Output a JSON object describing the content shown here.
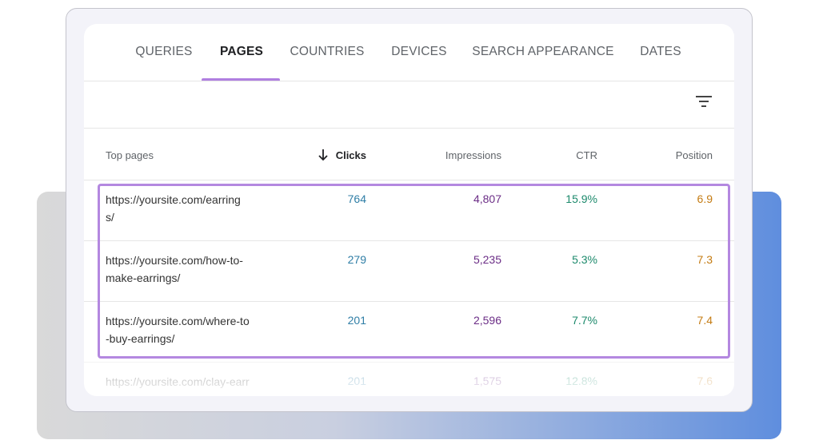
{
  "tabs": [
    "QUERIES",
    "PAGES",
    "COUNTRIES",
    "DEVICES",
    "SEARCH APPEARANCE",
    "DATES"
  ],
  "active_tab": 1,
  "table": {
    "headers": [
      "Top pages",
      "Clicks",
      "Impressions",
      "CTR",
      "Position"
    ],
    "rows": [
      {
        "url_lines": [
          "https://yoursite.com/earring",
          "s/"
        ],
        "cells": [
          "764",
          "4,807",
          "15.9%",
          "6.9"
        ]
      },
      {
        "url_lines": [
          "https://yoursite.com/how-to-",
          "make-earrings/"
        ],
        "cells": [
          "279",
          "5,235",
          "5.3%",
          "7.3"
        ]
      },
      {
        "url_lines": [
          "https://yoursite.com/where-to",
          "-buy-earrings/"
        ],
        "cells": [
          "201",
          "2,596",
          "7.7%",
          "7.4"
        ]
      },
      {
        "url_lines": [
          "https://yoursite.com/clay-earr"
        ],
        "cells": [
          "201",
          "1,575",
          "12.8%",
          "7.6"
        ]
      }
    ]
  }
}
